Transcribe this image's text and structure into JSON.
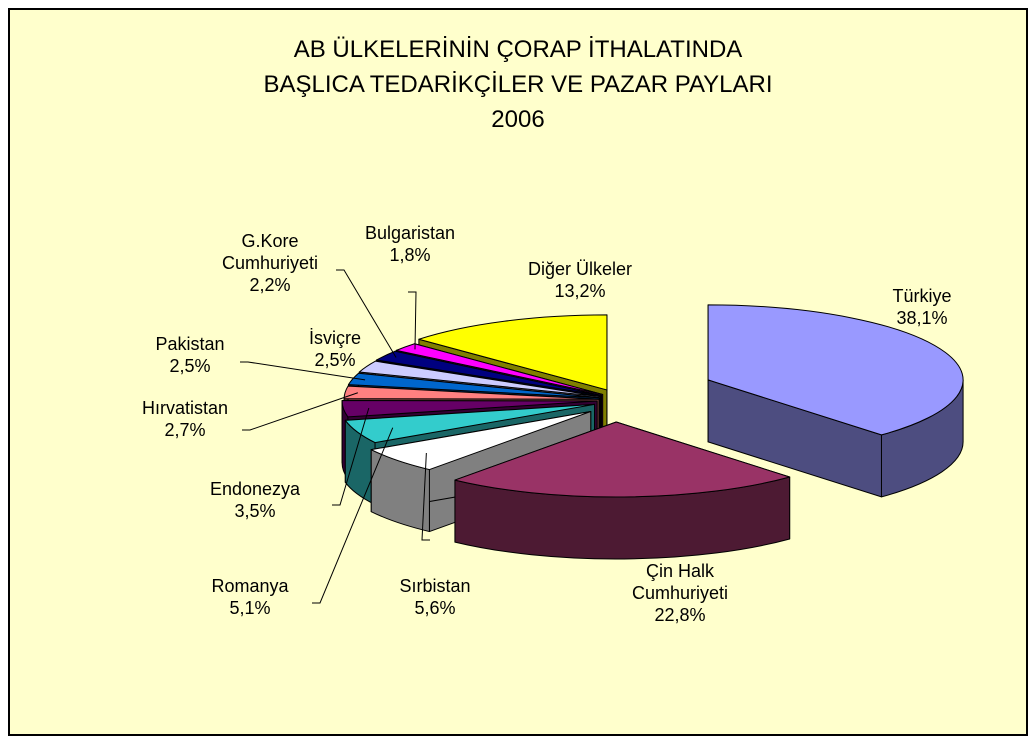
{
  "chart_data": {
    "type": "pie3d",
    "title": [
      "AB ÜLKELERİNİN ÇORAP İTHALATINDA",
      "BAŞLICA TEDARİKÇİLER VE PAZAR PAYLARI",
      "2006"
    ],
    "categories": [
      "Türkiye",
      "Çin Halk Cumhuriyeti",
      "Sırbistan",
      "Romanya",
      "Endonezya",
      "Hırvatistan",
      "Pakistan",
      "İsviçre",
      "G.Kore Cumhuriyeti",
      "Bulgaristan",
      "Diğer Ülkeler"
    ],
    "values": [
      38.1,
      22.8,
      5.6,
      5.1,
      3.5,
      2.7,
      2.5,
      2.5,
      2.2,
      1.8,
      13.2
    ],
    "value_labels": [
      "38,1%",
      "22,8%",
      "5,6%",
      "5,1%",
      "3,5%",
      "2,7%",
      "2,5%",
      "2,5%",
      "2,2%",
      "1,8%",
      "13,2%"
    ],
    "colors": [
      "#9999ff",
      "#993366",
      "#ffffff",
      "#33cccc",
      "#660066",
      "#ff8080",
      "#0066cc",
      "#ccccff",
      "#000080",
      "#ff00ff",
      "#ffff00"
    ]
  }
}
